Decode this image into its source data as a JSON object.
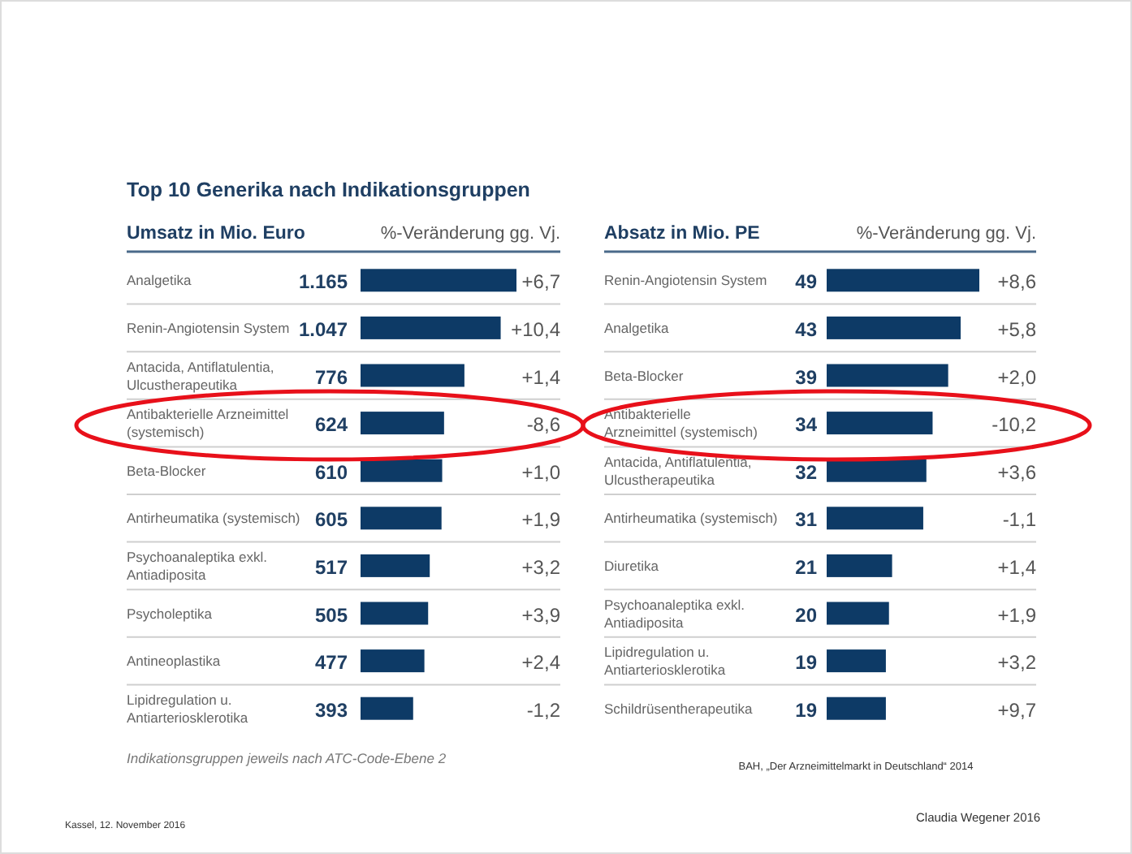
{
  "chart_data": [
    {
      "type": "bar",
      "orientation": "horizontal",
      "title": "Top 10 Generika nach Indikationsgruppen",
      "subtitle": "Umsatz in Mio. Euro",
      "y2label": "%-Veränderung gg. Vj.",
      "color": "#0d3a66",
      "categories": [
        "Analgetika",
        "Renin-Angiotensin System",
        "Antacida, Antiflatulentia, Ulcustherapeutika",
        "Antibakterielle Arzneimittel (systemisch)",
        "Beta-Blocker",
        "Antirheumatika (systemisch)",
        "Psychoanaleptika exkl. Antiadiposita",
        "Psycholeptika",
        "Antineoplastika",
        "Lipidregulation u. Antiarteriosklerotika"
      ],
      "values": [
        1165,
        1047,
        776,
        624,
        610,
        605,
        517,
        505,
        477,
        393
      ],
      "value_labels": [
        "1.165",
        "1.047",
        "776",
        "624",
        "610",
        "605",
        "517",
        "505",
        "477",
        "393"
      ],
      "annotations": [
        "+6,7",
        "+10,4",
        "+1,4",
        "-8,6",
        "+1,0",
        "+1,9",
        "+3,2",
        "+3,9",
        "+2,4",
        "-1,2",
        "Indikationsgruppen jeweils nach ATC-Code-Ebene 2",
        "Kassel, 12. November 2016"
      ],
      "grid": "y"
    },
    {
      "type": "bar",
      "orientation": "horizontal",
      "subtitle": "Absatz in Mio. PE",
      "y2label": "%-Veränderung gg. Vj.",
      "color": "#0d3a66",
      "categories": [
        "Renin-Angiotensin System",
        "Analgetika",
        "Beta-Blocker",
        "Antibakterielle Arzneimittel (systemisch)",
        "Antacida, Antiflatulentia, Ulcustherapeutika",
        "Antirheumatika (systemisch)",
        "Diuretika",
        "Psychoanaleptika exkl. Antiadiposita",
        "Lipidregulation u. Antiarteriosklerotika",
        "Schildrüsentherapeutika"
      ],
      "values": [
        49,
        43,
        39,
        34,
        32,
        31,
        21,
        20,
        19,
        19
      ],
      "data_labels": true,
      "annotations": [
        "+8,6",
        "+5,8",
        "+2,0",
        "-10,2",
        "+3,6",
        "-1,1",
        "+1,4",
        "+1,9",
        "+3,2",
        "+9,7",
        "BAH, „Der Arzneimittelmarkt in Deutschland“ 2014",
        "Claudia Wegener 2016"
      ],
      "grid": "y"
    }
  ]
}
